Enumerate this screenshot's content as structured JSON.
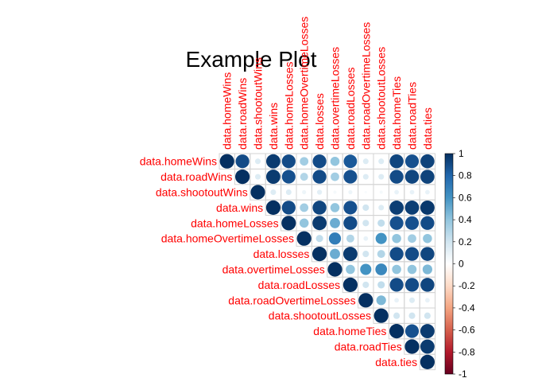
{
  "chart_data": {
    "type": "heatmap",
    "subtype": "correlation-upper-circles",
    "title": "Example Plot",
    "variables": [
      "data.homeWins",
      "data.roadWins",
      "data.shootoutWins",
      "data.wins",
      "data.homeLosses",
      "data.homeOvertimeLosses",
      "data.losses",
      "data.overtimeLosses",
      "data.roadLosses",
      "data.roadOvertimeLosses",
      "data.shootoutLosses",
      "data.homeTies",
      "data.roadTies",
      "data.ties"
    ],
    "matrix": [
      [
        1.0,
        0.9,
        0.15,
        0.96,
        0.9,
        0.35,
        0.9,
        0.4,
        0.85,
        0.15,
        0.15,
        0.92,
        0.88,
        0.93
      ],
      [
        0.9,
        1.0,
        0.15,
        0.96,
        0.88,
        0.3,
        0.9,
        0.35,
        0.88,
        0.15,
        0.15,
        0.9,
        0.92,
        0.93
      ],
      [
        0.15,
        0.15,
        1.0,
        0.15,
        0.15,
        0.08,
        0.12,
        0.05,
        0.08,
        0.03,
        0.05,
        0.1,
        0.1,
        0.1
      ],
      [
        0.96,
        0.96,
        0.15,
        1.0,
        0.9,
        0.35,
        0.92,
        0.4,
        0.88,
        0.2,
        0.15,
        0.95,
        0.95,
        0.97
      ],
      [
        0.9,
        0.88,
        0.15,
        0.9,
        1.0,
        0.4,
        0.96,
        0.5,
        0.9,
        0.2,
        0.25,
        0.88,
        0.88,
        0.9
      ],
      [
        0.35,
        0.3,
        0.08,
        0.35,
        0.4,
        1.0,
        0.25,
        0.7,
        0.3,
        0.1,
        0.6,
        0.4,
        0.35,
        0.4
      ],
      [
        0.9,
        0.9,
        0.12,
        0.92,
        0.96,
        0.25,
        1.0,
        0.5,
        0.96,
        0.2,
        0.3,
        0.9,
        0.9,
        0.92
      ],
      [
        0.4,
        0.35,
        0.05,
        0.4,
        0.5,
        0.7,
        0.5,
        1.0,
        0.4,
        0.6,
        0.65,
        0.4,
        0.4,
        0.45
      ],
      [
        0.85,
        0.88,
        0.08,
        0.88,
        0.9,
        0.3,
        0.96,
        0.4,
        1.0,
        0.2,
        0.25,
        0.9,
        0.9,
        0.92
      ],
      [
        0.15,
        0.15,
        0.03,
        0.2,
        0.2,
        0.1,
        0.2,
        0.6,
        0.2,
        1.0,
        0.45,
        0.1,
        0.15,
        0.1
      ],
      [
        0.15,
        0.15,
        0.05,
        0.15,
        0.25,
        0.6,
        0.3,
        0.65,
        0.25,
        0.45,
        1.0,
        0.2,
        0.2,
        0.2
      ],
      [
        0.92,
        0.9,
        0.1,
        0.95,
        0.88,
        0.4,
        0.9,
        0.4,
        0.9,
        0.1,
        0.2,
        1.0,
        0.88,
        0.96
      ],
      [
        0.88,
        0.92,
        0.1,
        0.95,
        0.88,
        0.35,
        0.9,
        0.4,
        0.9,
        0.15,
        0.2,
        0.88,
        1.0,
        0.96
      ],
      [
        0.93,
        0.93,
        0.1,
        0.97,
        0.9,
        0.4,
        0.92,
        0.45,
        0.92,
        0.1,
        0.2,
        0.96,
        0.96,
        1.0
      ]
    ],
    "color_scale": {
      "min": -1,
      "max": 1,
      "ticks": [
        "1",
        "0.8",
        "0.6",
        "0.4",
        "0.2",
        "0",
        "-0.2",
        "-0.4",
        "-0.6",
        "-0.8",
        "-1"
      ],
      "colors": [
        "#67001F",
        "#B2182B",
        "#D6604D",
        "#F4A582",
        "#FDDBC7",
        "#FFFFFF",
        "#D1E5F0",
        "#92C5DE",
        "#4393C3",
        "#2166AC",
        "#053061"
      ]
    },
    "label_color": "#ff0000",
    "grid": true,
    "legend": "right"
  }
}
